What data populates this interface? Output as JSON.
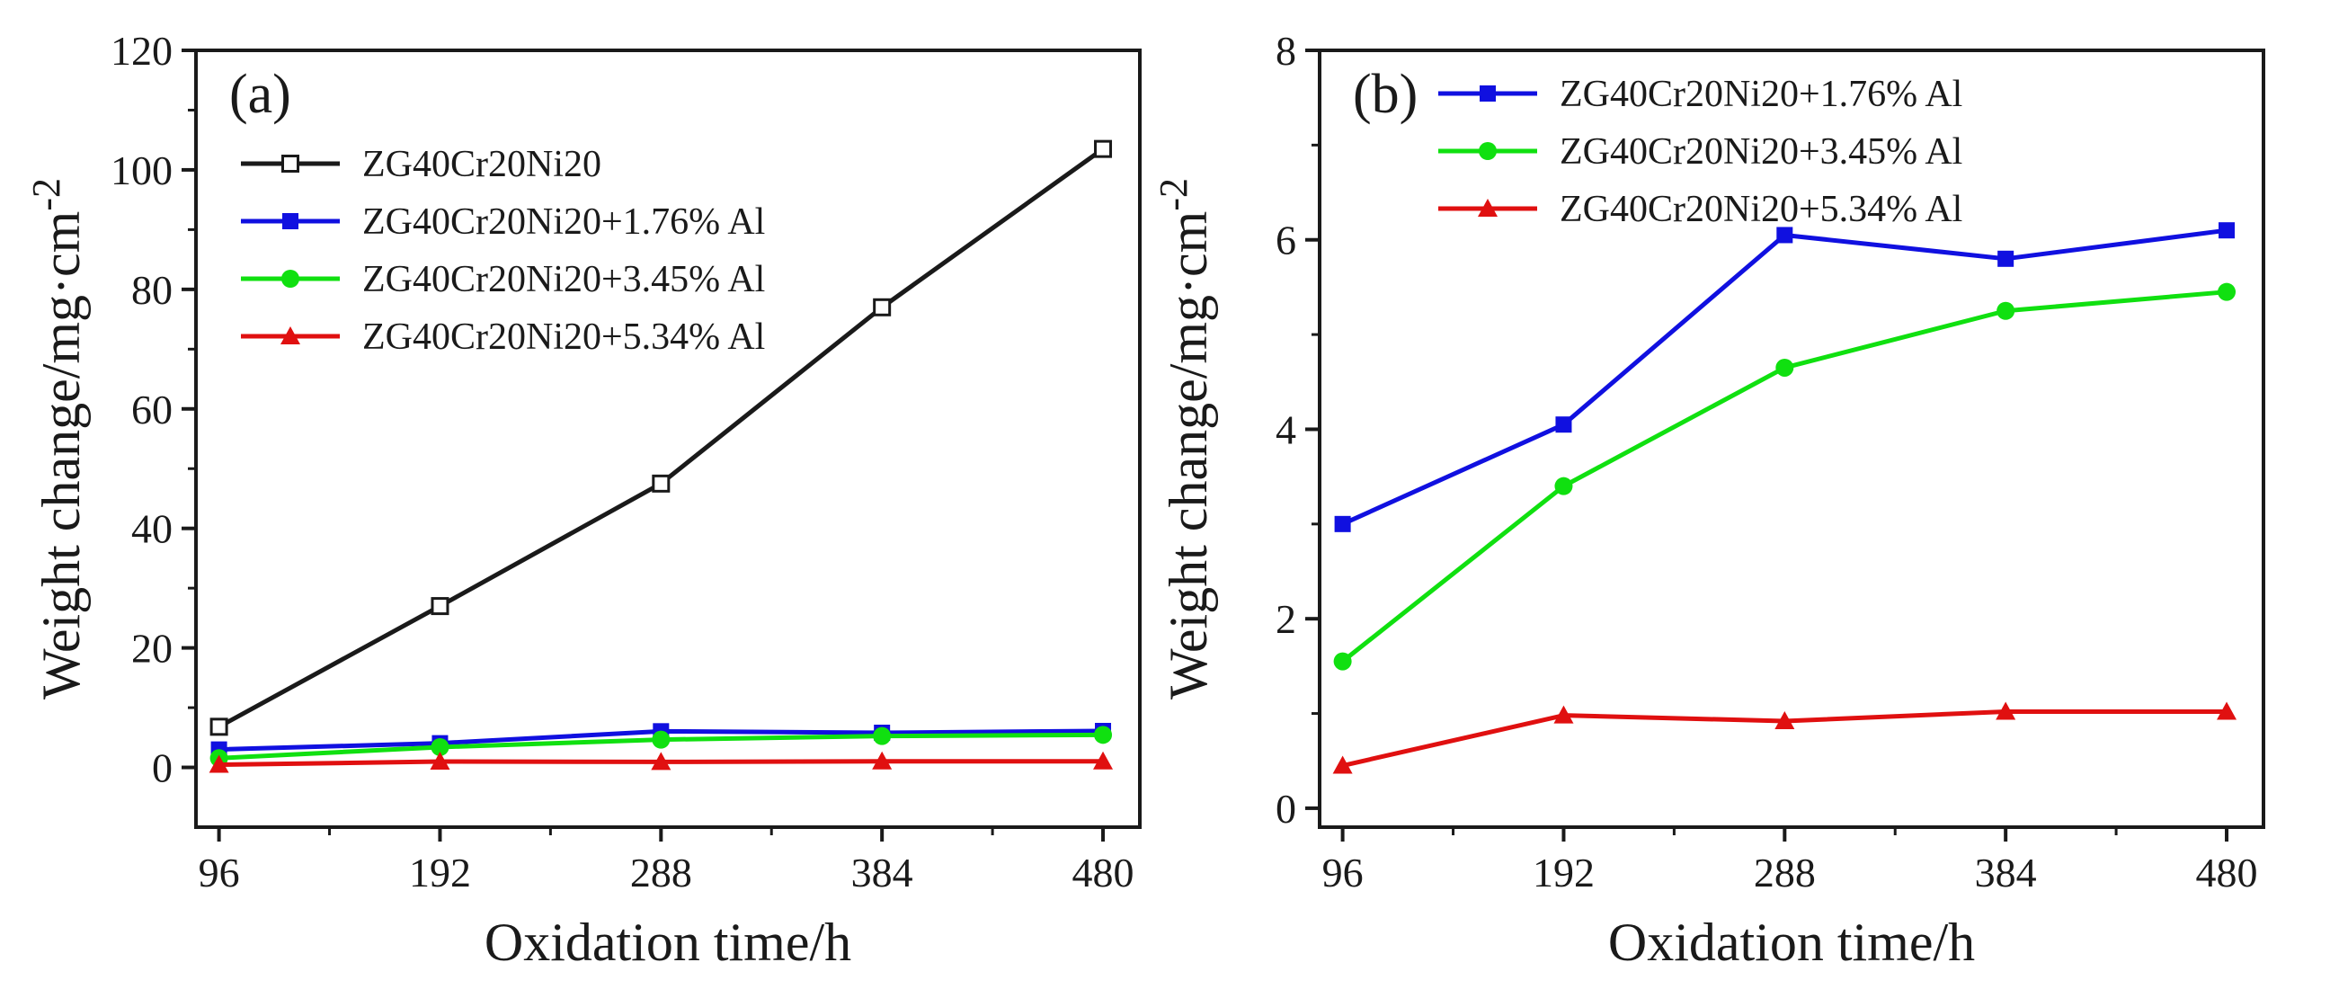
{
  "colors": {
    "plain": "#1a1a1a",
    "al176": "#1010e0",
    "al345": "#10e010",
    "al534": "#e01010"
  },
  "chart_data": [
    {
      "type": "line",
      "panel_label": "(a)",
      "xlabel": "Oxidation time/h",
      "ylabel": "Weight change/mg·cm",
      "ylabel_superscript": "-2",
      "x": [
        96,
        192,
        288,
        384,
        480
      ],
      "x_ticks": [
        96,
        192,
        288,
        384,
        480
      ],
      "y_ticks": [
        0,
        20,
        40,
        60,
        80,
        100,
        120
      ],
      "xlim": [
        86,
        496
      ],
      "ylim": [
        -10,
        120
      ],
      "legend_position": "top-left",
      "series": [
        {
          "name": "ZG40Cr20Ni20",
          "color_key": "plain",
          "marker": "open-square",
          "values": [
            6.8,
            27.0,
            47.5,
            77.0,
            103.5
          ]
        },
        {
          "name": "ZG40Cr20Ni20+1.76% Al",
          "color_key": "al176",
          "marker": "square",
          "values": [
            3.0,
            4.05,
            6.05,
            5.8,
            6.1
          ]
        },
        {
          "name": "ZG40Cr20Ni20+3.45% Al",
          "color_key": "al345",
          "marker": "circle",
          "values": [
            1.55,
            3.4,
            4.65,
            5.25,
            5.45
          ]
        },
        {
          "name": "ZG40Cr20Ni20+5.34% Al",
          "color_key": "al534",
          "marker": "triangle",
          "values": [
            0.45,
            0.98,
            0.92,
            1.02,
            1.02
          ]
        }
      ]
    },
    {
      "type": "line",
      "panel_label": "(b)",
      "xlabel": "Oxidation time/h",
      "ylabel": "Weight change/mg·cm",
      "ylabel_superscript": "-2",
      "x": [
        96,
        192,
        288,
        384,
        480
      ],
      "x_ticks": [
        96,
        192,
        288,
        384,
        480
      ],
      "y_ticks": [
        0,
        2,
        4,
        6,
        8
      ],
      "xlim": [
        86,
        496
      ],
      "ylim": [
        -0.2,
        8
      ],
      "legend_position": "top-left",
      "series": [
        {
          "name": "ZG40Cr20Ni20+1.76% Al",
          "color_key": "al176",
          "marker": "square",
          "values": [
            3.0,
            4.05,
            6.05,
            5.8,
            6.1
          ]
        },
        {
          "name": "ZG40Cr20Ni20+3.45% Al",
          "color_key": "al345",
          "marker": "circle",
          "values": [
            1.55,
            3.4,
            4.65,
            5.25,
            5.45
          ]
        },
        {
          "name": "ZG40Cr20Ni20+5.34% Al",
          "color_key": "al534",
          "marker": "triangle",
          "values": [
            0.45,
            0.98,
            0.92,
            1.02,
            1.02
          ]
        }
      ]
    }
  ]
}
